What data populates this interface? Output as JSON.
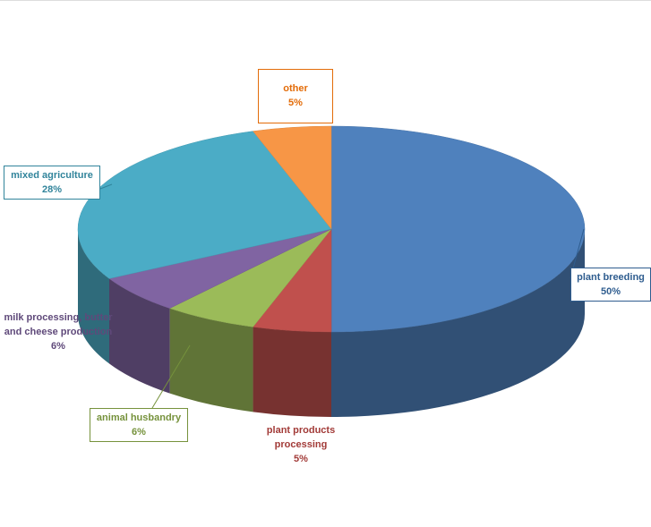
{
  "chart_data": {
    "type": "pie3d",
    "categories": [
      "plant breeding",
      "plant products processing",
      "animal husbandry",
      "milk processing, butter and cheese production",
      "mixed agriculture",
      "other"
    ],
    "values": [
      50,
      5,
      6,
      6,
      28,
      5
    ],
    "value_labels": [
      "50%",
      "5%",
      "6%",
      "6%",
      "28%",
      "5%"
    ],
    "colors": [
      "#4f81bd",
      "#c0504d",
      "#9bbb59",
      "#8064a2",
      "#4bacc6",
      "#f79646"
    ]
  }
}
